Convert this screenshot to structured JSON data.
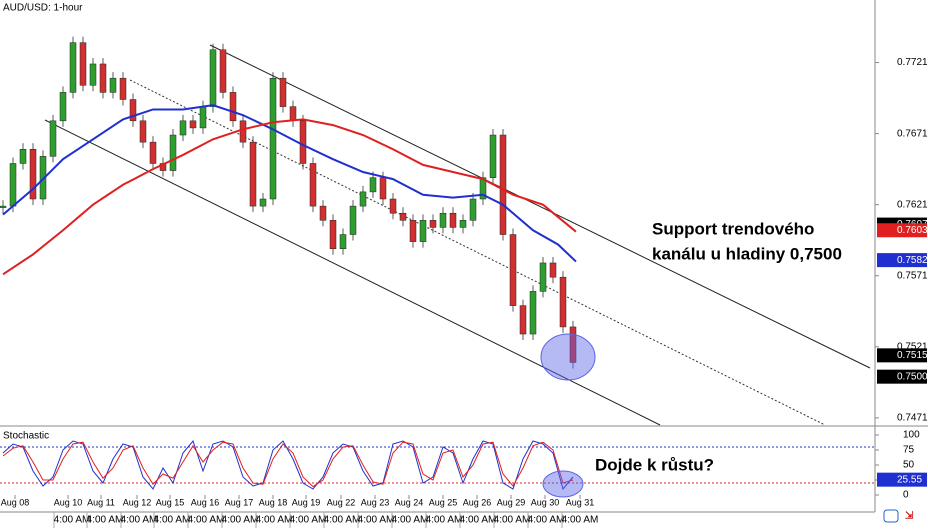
{
  "chart_data": {
    "type": "candlestick",
    "title": "AUD/USD: 1-hour",
    "indicator_title": "Stochastic",
    "annotations": [
      "Support trendového kanálu u hladiny 0,7500",
      "Dojde k růstu?"
    ],
    "ylim": [
      0.7466,
      0.7765
    ],
    "yticks": [
      0.7721,
      0.7671,
      0.7621,
      0.7571,
      0.7521,
      0.7471
    ],
    "xlim": [
      0,
      87.5
    ],
    "price_series": {
      "name": "AUD/USD",
      "up_color": "#2e9e2e",
      "down_color": "#d23030",
      "values": [
        0.762,
        0.765,
        0.766,
        0.7625,
        0.7655,
        0.768,
        0.77,
        0.7735,
        0.7705,
        0.772,
        0.77,
        0.771,
        0.7695,
        0.768,
        0.7665,
        0.765,
        0.7645,
        0.767,
        0.768,
        0.7675,
        0.769,
        0.773,
        0.77,
        0.768,
        0.7665,
        0.762,
        0.7625,
        0.771,
        0.769,
        0.768,
        0.765,
        0.762,
        0.761,
        0.759,
        0.76,
        0.762,
        0.763,
        0.764,
        0.7625,
        0.7615,
        0.761,
        0.7595,
        0.761,
        0.7605,
        0.7615,
        0.7605,
        0.761,
        0.7625,
        0.764,
        0.767,
        0.76,
        0.755,
        0.753,
        0.756,
        0.758,
        0.757,
        0.7535,
        0.751
      ]
    },
    "series": [
      {
        "name": "MA fast",
        "color": "#1f2fd0",
        "x": [
          0,
          3,
          6,
          9,
          12,
          15,
          18,
          21,
          24,
          27,
          30,
          33,
          36,
          39,
          42,
          45,
          48,
          50,
          53,
          55.5,
          57.3
        ],
        "values": [
          0.7614,
          0.7632,
          0.7653,
          0.7667,
          0.7681,
          0.7688,
          0.7688,
          0.7691,
          0.7684,
          0.7674,
          0.7663,
          0.7653,
          0.7644,
          0.7639,
          0.7628,
          0.7626,
          0.7628,
          0.7621,
          0.7603,
          0.7593,
          0.7581
        ]
      },
      {
        "name": "MA slow",
        "color": "#e02020",
        "x": [
          0,
          3,
          6,
          9,
          12,
          15,
          18,
          21,
          24,
          27,
          30,
          33,
          36,
          39,
          42,
          45,
          48,
          51,
          54,
          57.3
        ],
        "values": [
          0.7572,
          0.7586,
          0.7603,
          0.7621,
          0.7635,
          0.7646,
          0.7656,
          0.7667,
          0.7674,
          0.7679,
          0.7681,
          0.7677,
          0.767,
          0.766,
          0.7649,
          0.7644,
          0.7639,
          0.7628,
          0.7621,
          0.7602
        ]
      }
    ],
    "price_markers": [
      {
        "value": 0.7607,
        "color": "#000000"
      },
      {
        "value": 0.7603,
        "color": "#e02020"
      },
      {
        "value": 0.7582,
        "color": "#1f2fd0"
      },
      {
        "value": 0.7515,
        "color": "#000000"
      },
      {
        "value": 0.75,
        "color": "#000000"
      }
    ],
    "y2lim": [
      0,
      100
    ],
    "y2ticks": [
      0,
      25,
      50,
      75,
      100
    ],
    "stoch_levels": [
      {
        "value": 80,
        "color": "#2030d0"
      },
      {
        "value": 20,
        "color": "#e02020"
      }
    ],
    "stoch_series": [
      {
        "name": "%K",
        "color": "#2030d0",
        "values": [
          70,
          85,
          80,
          40,
          15,
          30,
          75,
          90,
          85,
          40,
          20,
          60,
          85,
          80,
          30,
          10,
          45,
          20,
          70,
          90,
          40,
          85,
          90,
          80,
          30,
          15,
          20,
          75,
          90,
          60,
          20,
          10,
          30,
          70,
          85,
          80,
          40,
          15,
          20,
          85,
          90,
          80,
          20,
          30,
          80,
          70,
          20,
          60,
          90,
          85,
          20,
          10,
          60,
          90,
          85,
          70,
          10,
          30
        ]
      },
      {
        "name": "%D",
        "color": "#e02020",
        "values": [
          65,
          78,
          82,
          55,
          25,
          25,
          60,
          85,
          88,
          55,
          28,
          45,
          75,
          82,
          45,
          18,
          35,
          28,
          55,
          82,
          55,
          75,
          88,
          85,
          45,
          20,
          18,
          60,
          85,
          70,
          30,
          14,
          25,
          60,
          80,
          82,
          50,
          22,
          18,
          70,
          88,
          85,
          35,
          25,
          70,
          75,
          30,
          50,
          85,
          88,
          35,
          15,
          45,
          82,
          88,
          75,
          20,
          25
        ]
      }
    ],
    "stoch_marker": {
      "value": 25.55,
      "color": "#1f2fd0"
    },
    "date_ticks": [
      {
        "value": 1.5,
        "label": "Aug 08"
      },
      {
        "value": 6.8,
        "label": "Aug 10"
      },
      {
        "value": 10.1,
        "label": "Aug 11"
      },
      {
        "value": 13.7,
        "label": "Aug 12"
      },
      {
        "value": 17,
        "label": "Aug 15"
      },
      {
        "value": 20.5,
        "label": "Aug 16"
      },
      {
        "value": 23.9,
        "label": "Aug 17"
      },
      {
        "value": 27.3,
        "label": "Aug 18"
      },
      {
        "value": 30.6,
        "label": "Aug 19"
      },
      {
        "value": 34.1,
        "label": "Aug 22"
      },
      {
        "value": 37.5,
        "label": "Aug 23"
      },
      {
        "value": 40.9,
        "label": "Aug 24"
      },
      {
        "value": 44.3,
        "label": "Aug 25"
      },
      {
        "value": 47.7,
        "label": "Aug 26"
      },
      {
        "value": 51.1,
        "label": "Aug 29"
      },
      {
        "value": 54.5,
        "label": "Aug 30"
      },
      {
        "value": 58,
        "label": "Aug 31"
      }
    ],
    "time_label": "4:00 AM",
    "time_ticks": [
      7.4,
      10.7,
      14.1,
      17.4,
      20.8,
      24.2,
      27.6,
      31,
      34.4,
      37.8,
      41.2,
      44.6,
      48,
      51.4,
      54.8,
      58.2
    ]
  }
}
